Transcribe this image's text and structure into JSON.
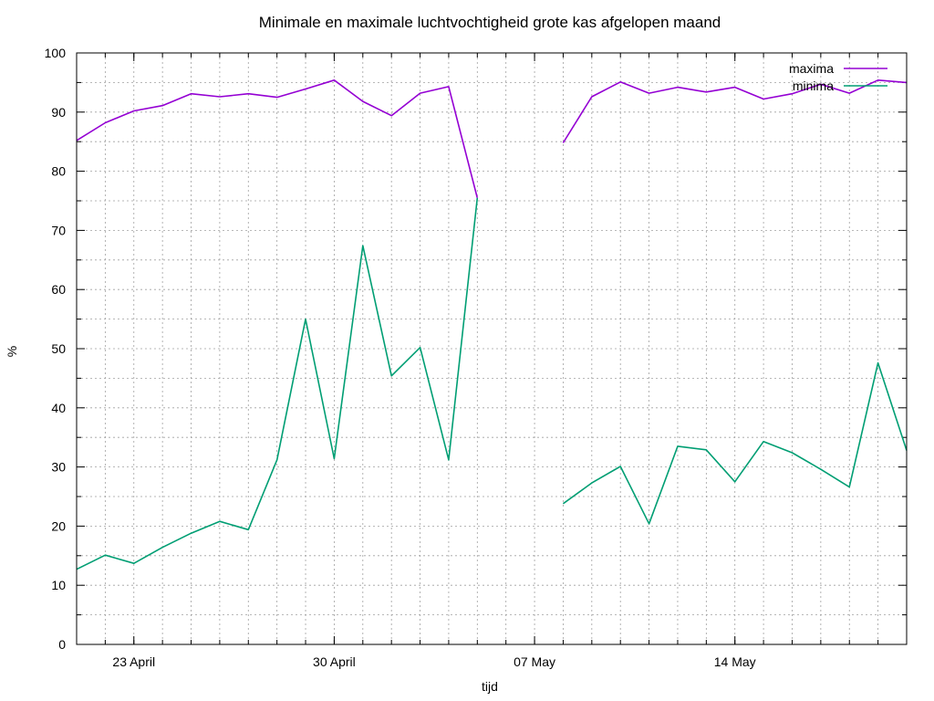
{
  "chart_data": {
    "type": "line",
    "title": "Minimale en maximale luchtvochtigheid grote kas afgelopen maand",
    "xlabel": "tijd",
    "ylabel": "%",
    "ylim": [
      0,
      100
    ],
    "yticks": [
      0,
      10,
      20,
      30,
      40,
      50,
      60,
      70,
      80,
      90,
      100
    ],
    "xlim": [
      "2014-04-21",
      "2014-05-20"
    ],
    "xticks": [
      {
        "date": "2014-04-23",
        "label": "23 April"
      },
      {
        "date": "2014-04-30",
        "label": "30 April"
      },
      {
        "date": "2014-05-07",
        "label": "07 May"
      },
      {
        "date": "2014-05-14",
        "label": "14 May"
      }
    ],
    "grid": true,
    "legend_position": "top-right",
    "title_color": "#4169e1",
    "series": [
      {
        "name": "maxima",
        "color": "#9400d3",
        "points": [
          [
            "2014-04-21",
            85.2
          ],
          [
            "2014-04-22",
            88.2
          ],
          [
            "2014-04-23",
            90.2
          ],
          [
            "2014-04-24",
            91.1
          ],
          [
            "2014-04-25",
            93.1
          ],
          [
            "2014-04-26",
            92.6
          ],
          [
            "2014-04-27",
            93.1
          ],
          [
            "2014-04-28",
            92.5
          ],
          [
            "2014-04-29",
            93.9
          ],
          [
            "2014-04-30",
            95.4
          ],
          [
            "2014-05-01",
            91.8
          ],
          [
            "2014-05-02",
            89.4
          ],
          [
            "2014-05-03",
            93.2
          ],
          [
            "2014-05-04",
            94.3
          ],
          [
            "2014-05-05",
            75.5
          ],
          null,
          [
            "2014-05-08",
            84.8
          ],
          [
            "2014-05-09",
            92.6
          ],
          [
            "2014-05-10",
            95.1
          ],
          [
            "2014-05-11",
            93.2
          ],
          [
            "2014-05-12",
            94.2
          ],
          [
            "2014-05-13",
            93.4
          ],
          [
            "2014-05-14",
            94.2
          ],
          [
            "2014-05-15",
            92.2
          ],
          [
            "2014-05-16",
            93.1
          ],
          [
            "2014-05-17",
            94.7
          ],
          [
            "2014-05-18",
            93.2
          ],
          [
            "2014-05-19",
            95.4
          ],
          [
            "2014-05-20",
            95.0
          ]
        ]
      },
      {
        "name": "minima",
        "color": "#009e73",
        "points": [
          [
            "2014-04-21",
            12.7
          ],
          [
            "2014-04-22",
            15.1
          ],
          [
            "2014-04-23",
            13.7
          ],
          [
            "2014-04-24",
            16.4
          ],
          [
            "2014-04-25",
            18.8
          ],
          [
            "2014-04-26",
            20.8
          ],
          [
            "2014-04-27",
            19.4
          ],
          [
            "2014-04-28",
            31.2
          ],
          [
            "2014-04-29",
            55.0
          ],
          [
            "2014-04-30",
            31.4
          ],
          [
            "2014-05-01",
            67.4
          ],
          [
            "2014-05-02",
            45.4
          ],
          [
            "2014-05-03",
            50.2
          ],
          [
            "2014-05-04",
            31.2
          ],
          [
            "2014-05-05",
            75.5
          ],
          null,
          [
            "2014-05-08",
            23.8
          ],
          [
            "2014-05-09",
            27.3
          ],
          [
            "2014-05-10",
            30.1
          ],
          [
            "2014-05-11",
            20.4
          ],
          [
            "2014-05-12",
            33.5
          ],
          [
            "2014-05-13",
            32.9
          ],
          [
            "2014-05-14",
            27.5
          ],
          [
            "2014-05-15",
            34.3
          ],
          [
            "2014-05-16",
            32.4
          ],
          [
            "2014-05-17",
            29.6
          ],
          [
            "2014-05-18",
            26.6
          ],
          [
            "2014-05-19",
            47.6
          ],
          [
            "2014-05-20",
            32.8
          ]
        ]
      }
    ]
  }
}
